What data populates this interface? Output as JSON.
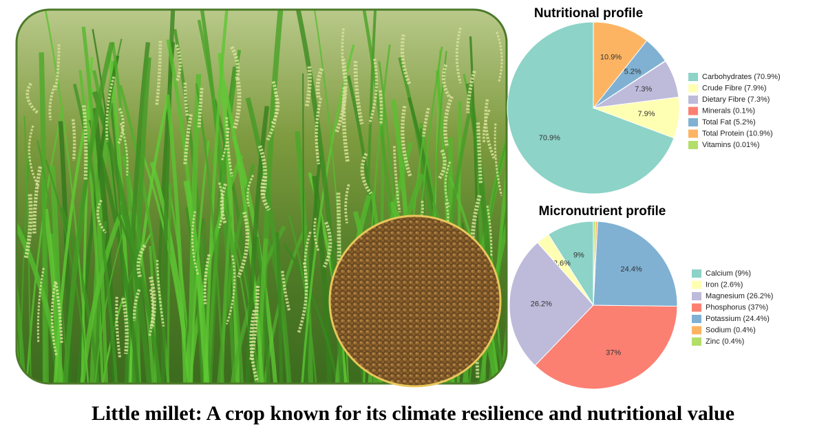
{
  "chart_data": [
    {
      "type": "pie",
      "title": "Nutritional profile",
      "direction": "counterclockwise",
      "categories": [
        "Carbohydrates (70.9%)",
        "Crude Fibre (7.9%)",
        "Dietary Fibre (7.3%)",
        "Minerals (0.1%)",
        "Total Fat (5.2%)",
        "Total Protein (10.9%)",
        "Vitamins (0.01%)"
      ],
      "values": [
        70.9,
        7.9,
        7.3,
        0.1,
        5.2,
        10.9,
        0.01
      ],
      "value_labels": [
        "70.9%",
        "7.9%",
        "7.3%",
        null,
        "5.2%",
        "10.9%",
        null
      ],
      "colors": [
        "#8dd3c7",
        "#ffffb3",
        "#bebada",
        "#fb8072",
        "#80b1d3",
        "#fdb462",
        "#b3de69"
      ]
    },
    {
      "type": "pie",
      "title": "Micronutrient profile",
      "direction": "counterclockwise",
      "categories": [
        "Calcium (9%)",
        "Iron (2.6%)",
        "Magnesium (26.2%)",
        "Phosphorus (37%)",
        "Potassium (24.4%)",
        "Sodium (0.4%)",
        "Zinc (0.4%)"
      ],
      "values": [
        9,
        2.6,
        26.2,
        37,
        24.4,
        0.4,
        0.4
      ],
      "value_labels": [
        "9%",
        "2.6%",
        "26.2%",
        "37%",
        "24.4%",
        null,
        null
      ],
      "colors": [
        "#8dd3c7",
        "#ffffb3",
        "#bebada",
        "#fb8072",
        "#80b1d3",
        "#fdb462",
        "#b3de69"
      ]
    }
  ],
  "caption": "Little millet: A crop known for its climate resilience and nutritional value"
}
